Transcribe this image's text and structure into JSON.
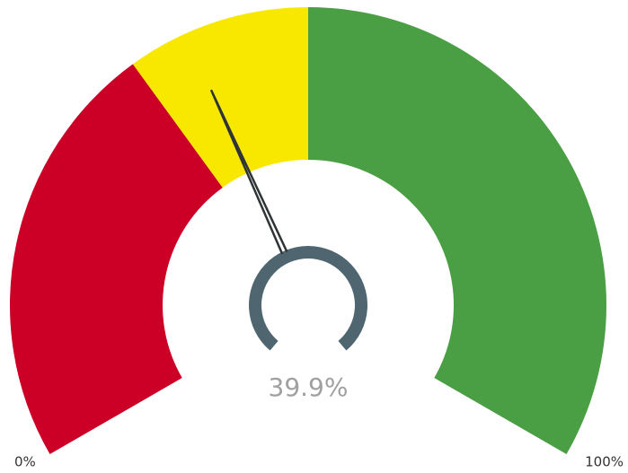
{
  "chart_data": {
    "type": "gauge",
    "values": [
      39.9
    ],
    "value_labels": [
      "39.9%"
    ],
    "bands": {
      "values": [
        35,
        15,
        50
      ],
      "colors": [
        "#cc0026",
        "#f8e800",
        "#4a9e43"
      ]
    },
    "needle_color": "#2f3436",
    "hub_color": "#4f6670",
    "ylim": [
      0,
      100
    ],
    "yticks": [
      {
        "value": 0,
        "label": "0%"
      },
      {
        "value": 100,
        "label": "100%"
      }
    ]
  }
}
